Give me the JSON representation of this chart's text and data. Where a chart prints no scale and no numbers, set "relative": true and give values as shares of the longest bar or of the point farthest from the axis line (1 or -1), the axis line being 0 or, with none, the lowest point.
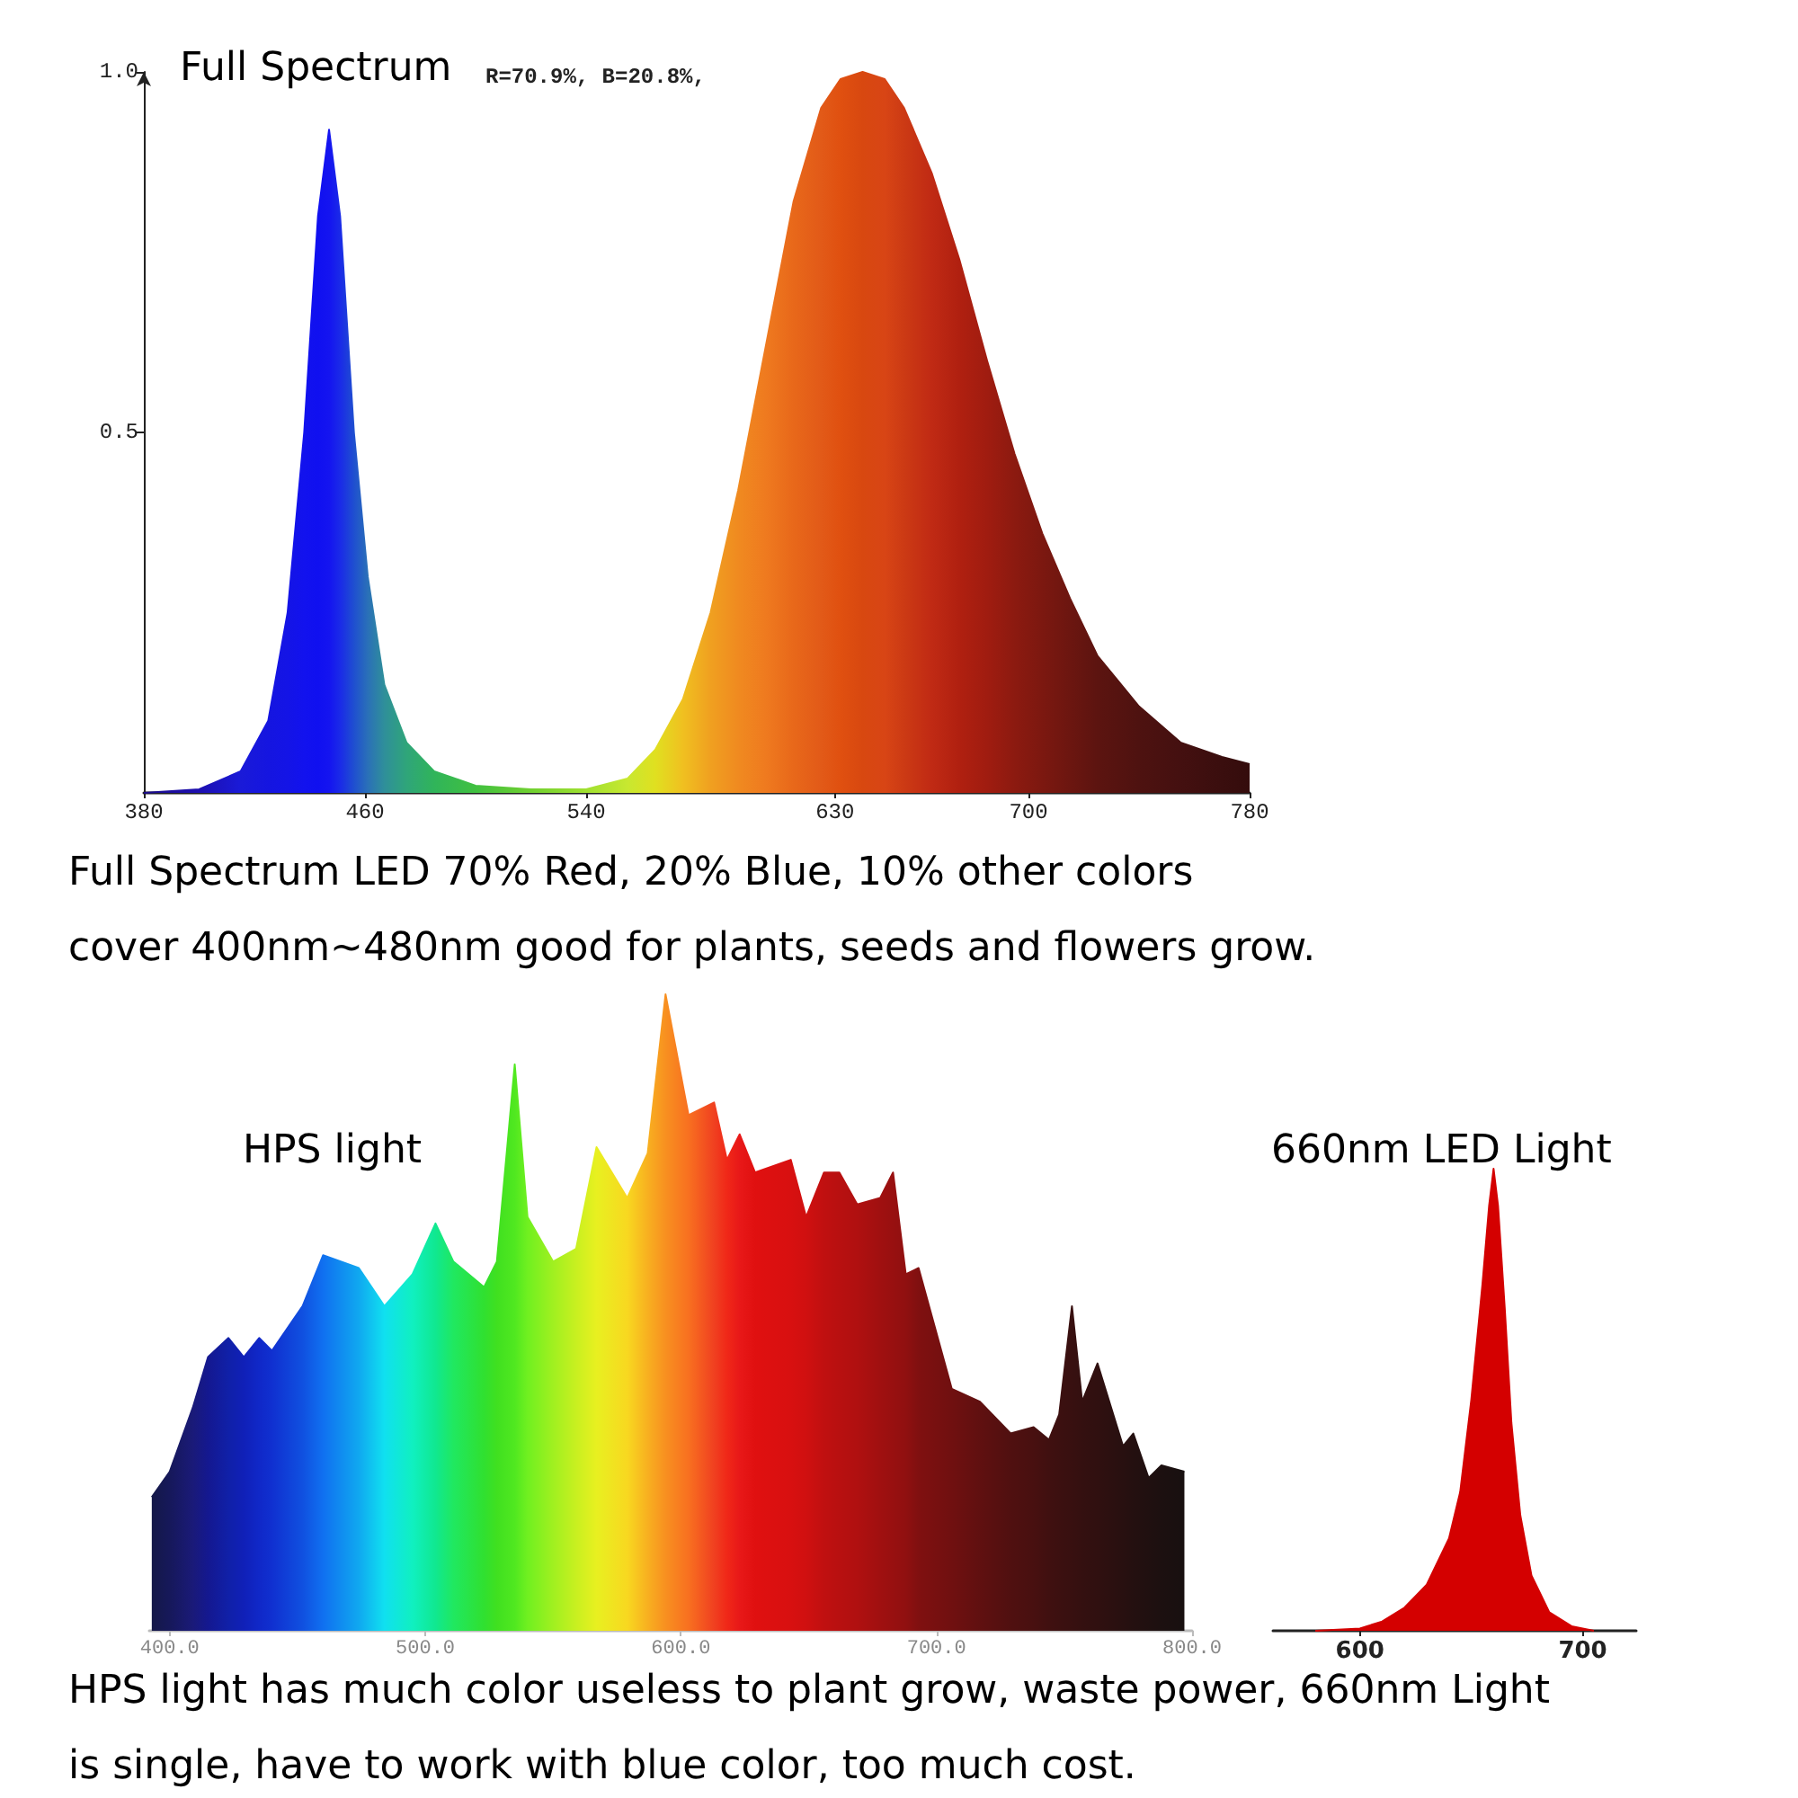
{
  "chart_data": [
    {
      "type": "area",
      "title": "Full Spectrum",
      "subtitle": "R=70.9%, B=20.8%,",
      "annotations": [
        "Full Spectrum LED 70% Red, 20% Blue, 10% other colors",
        "cover 400nm~480nm good for plants, seeds and flowers grow."
      ],
      "x": [
        380,
        400,
        415,
        425,
        432,
        438,
        443,
        447,
        451,
        456,
        461,
        467,
        475,
        485,
        500,
        520,
        540,
        555,
        565,
        575,
        585,
        595,
        605,
        615,
        625,
        632,
        640,
        648,
        655,
        665,
        675,
        685,
        695,
        705,
        715,
        725,
        740,
        755,
        770,
        780
      ],
      "values": [
        0,
        0.005,
        0.03,
        0.1,
        0.25,
        0.5,
        0.8,
        0.92,
        0.8,
        0.5,
        0.3,
        0.15,
        0.07,
        0.03,
        0.01,
        0.005,
        0.005,
        0.02,
        0.06,
        0.13,
        0.25,
        0.42,
        0.62,
        0.82,
        0.95,
        0.99,
        1.0,
        0.99,
        0.95,
        0.86,
        0.74,
        0.6,
        0.47,
        0.36,
        0.27,
        0.19,
        0.12,
        0.07,
        0.05,
        0.04
      ],
      "colors": [
        "#1a0a8a",
        "#1d0fb0",
        "#1a1ad8",
        "#1515e0",
        "#1414e6",
        "#1212ee",
        "#1010f0",
        "#1414f0",
        "#1a2ae8",
        "#1f4fd0",
        "#2a70b8",
        "#2f8f9a",
        "#2fa57a",
        "#30b45a",
        "#40c040",
        "#70d030",
        "#a0e030",
        "#c8e830",
        "#e0e020",
        "#f0c020",
        "#f0a020",
        "#f08a20",
        "#ef7a1f",
        "#e8681a",
        "#e25a18",
        "#e05010",
        "#d84810",
        "#d84515",
        "#cc3a14",
        "#c02a14",
        "#b02010",
        "#a01c10",
        "#8c1a10",
        "#7c1810",
        "#6c1610",
        "#5c1410",
        "#4e1210",
        "#441010",
        "#3a0e0e",
        "#340c0c"
      ],
      "xlim": [
        380,
        780
      ],
      "xticks": [
        380,
        460,
        540,
        630,
        700,
        780
      ],
      "ylim": [
        0,
        1.0
      ],
      "yticks": [
        {
          "value": 0.5,
          "label": "0.5"
        },
        {
          "value": 1.0,
          "label": "1.0"
        }
      ]
    },
    {
      "type": "area",
      "title": "HPS light",
      "relative": true,
      "tick_labels": "x",
      "annotations": [
        "HPS light has much color useless to plant grow, waste power, 660nm Light",
        "is single, have to work with blue color, too much cost."
      ],
      "x": [
        393,
        400,
        409,
        415,
        423,
        429,
        435,
        440,
        452,
        460,
        474,
        484,
        495,
        504,
        511,
        523,
        528,
        535,
        540,
        550,
        559,
        567,
        579,
        587,
        594,
        603,
        613,
        618,
        623,
        629,
        643,
        649,
        656,
        662,
        669,
        678,
        683,
        688,
        693,
        706,
        717,
        729,
        738,
        744,
        748,
        753,
        757,
        763,
        773,
        777,
        783,
        788,
        797
      ],
      "values": [
        0.21,
        0.25,
        0.35,
        0.43,
        0.46,
        0.43,
        0.46,
        0.44,
        0.51,
        0.59,
        0.57,
        0.51,
        0.56,
        0.64,
        0.58,
        0.54,
        0.58,
        0.89,
        0.65,
        0.58,
        0.6,
        0.76,
        0.68,
        0.75,
        1,
        0.81,
        0.83,
        0.74,
        0.78,
        0.72,
        0.74,
        0.65,
        0.72,
        0.72,
        0.67,
        0.68,
        0.72,
        0.56,
        0.57,
        0.38,
        0.36,
        0.31,
        0.32,
        0.3,
        0.34,
        0.51,
        0.36,
        0.42,
        0.29,
        0.31,
        0.24,
        0.26,
        0.25
      ],
      "colors": [
        "#141848",
        "#16185a",
        "#1a1a78",
        "#141890",
        "#1020a8",
        "#1020b8",
        "#1028c8",
        "#1030d0",
        "#1050e0",
        "#1070f0",
        "#10a8f0",
        "#10e0f0",
        "#10f0c0",
        "#10e890",
        "#20e860",
        "#30e030",
        "#40e020",
        "#50e820",
        "#70f020",
        "#a0f020",
        "#c8f020",
        "#e8f020",
        "#f8d820",
        "#f8b020",
        "#f89020",
        "#f87020",
        "#f04020",
        "#f02818",
        "#e81818",
        "#e01010",
        "#d81010",
        "#d01010",
        "#c01010",
        "#b81010",
        "#b01010",
        "#a01010",
        "#981010",
        "#901010",
        "#801010",
        "#701010",
        "#601010",
        "#501010",
        "#481010",
        "#401010",
        "#3c1010",
        "#381010",
        "#341010",
        "#301010",
        "#281010",
        "#241010",
        "#201010",
        "#1c1010",
        "#181010"
      ],
      "xlim": [
        392,
        800
      ],
      "xticks": [
        {
          "value": 400,
          "label": "400.0"
        },
        {
          "value": 500,
          "label": "500.0"
        },
        {
          "value": 600,
          "label": "600.0"
        },
        {
          "value": 700,
          "label": "700.0"
        },
        {
          "value": 800,
          "label": "800.0"
        }
      ]
    },
    {
      "type": "area",
      "title": "660nm LED Light",
      "relative": true,
      "tick_labels": "x",
      "color": "#d40000",
      "x": [
        580,
        600,
        610,
        620,
        630,
        640,
        645,
        650,
        655,
        658,
        660,
        662,
        665,
        668,
        672,
        677,
        685,
        695,
        705
      ],
      "values": [
        0,
        0.005,
        0.02,
        0.05,
        0.1,
        0.2,
        0.3,
        0.5,
        0.75,
        0.92,
        1,
        0.92,
        0.7,
        0.45,
        0.25,
        0.12,
        0.04,
        0.01,
        0
      ],
      "xlim": [
        561,
        724
      ],
      "xticks": [
        600,
        700
      ]
    }
  ]
}
